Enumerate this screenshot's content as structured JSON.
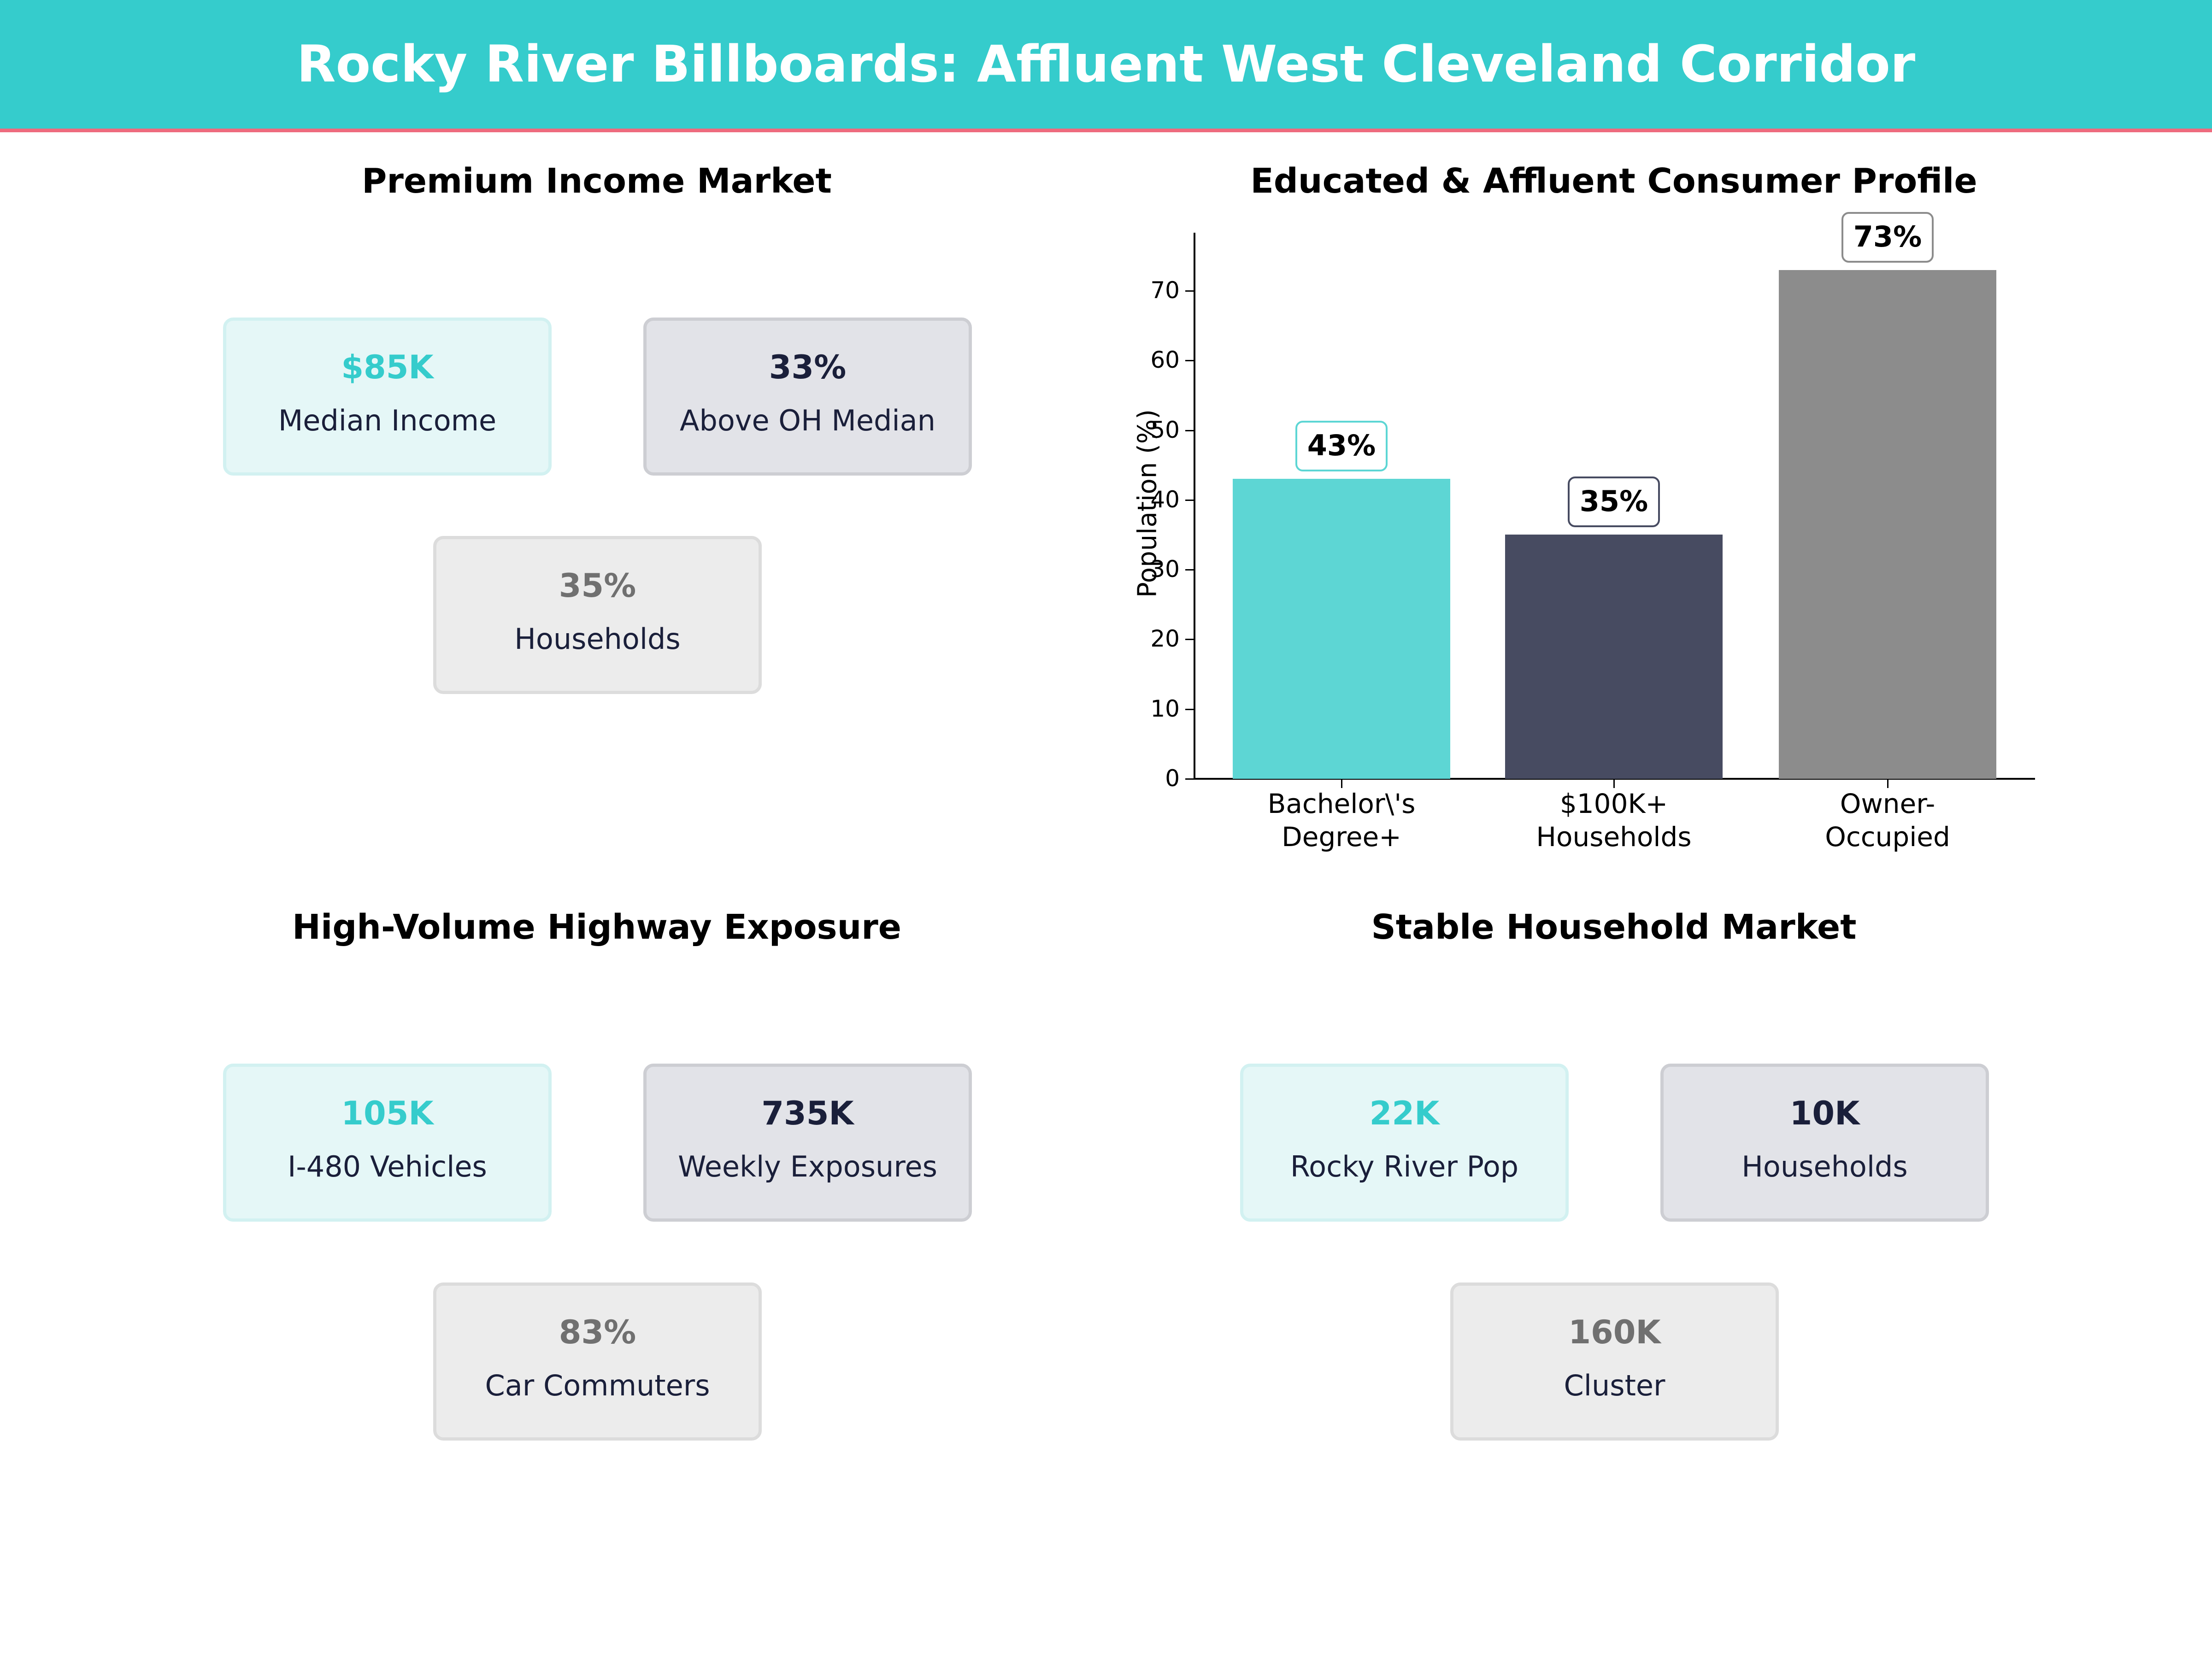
{
  "header": {
    "title": "Rocky River Billboards: Affluent West Cleveland Corridor",
    "background_color": "#35cccc",
    "accent_line_color": "#ee6b7e"
  },
  "panels": {
    "income": {
      "title": "Premium Income Market",
      "cards": [
        {
          "value": "$85K",
          "label": "Median Income"
        },
        {
          "value": "33%",
          "label": "Above OH Median"
        },
        {
          "value": "35%",
          "label": "Households"
        }
      ]
    },
    "profile": {
      "title": "Educated & Affluent Consumer Profile"
    },
    "highway": {
      "title": "High-Volume Highway Exposure",
      "cards": [
        {
          "value": "105K",
          "label": "I-480 Vehicles"
        },
        {
          "value": "735K",
          "label": "Weekly Exposures"
        },
        {
          "value": "83%",
          "label": "Car Commuters"
        }
      ]
    },
    "household": {
      "title": "Stable Household Market",
      "cards": [
        {
          "value": "22K",
          "label": "Rocky River Pop"
        },
        {
          "value": "10K",
          "label": "Households"
        },
        {
          "value": "160K",
          "label": "Cluster"
        }
      ]
    }
  },
  "chart_data": {
    "type": "bar",
    "title": "Educated & Affluent Consumer Profile",
    "xlabel": "",
    "ylabel": "Population (%)",
    "categories": [
      "Bachelor\\'s Degree+",
      "$100K+ Households",
      "Owner-Occupied"
    ],
    "category_lines": [
      [
        "Bachelor\\'s",
        "Degree+"
      ],
      [
        "$100K+",
        "Households"
      ],
      [
        "Owner-",
        "Occupied"
      ]
    ],
    "values": [
      43,
      35,
      73
    ],
    "value_labels": [
      "43%",
      "35%",
      "73%"
    ],
    "colors": [
      "#5dd6d4",
      "#474b61",
      "#8c8c8c"
    ],
    "yticks": [
      0,
      10,
      20,
      30,
      40,
      50,
      60,
      70
    ],
    "ylim": [
      0,
      78
    ],
    "grid": false,
    "legend": null
  }
}
